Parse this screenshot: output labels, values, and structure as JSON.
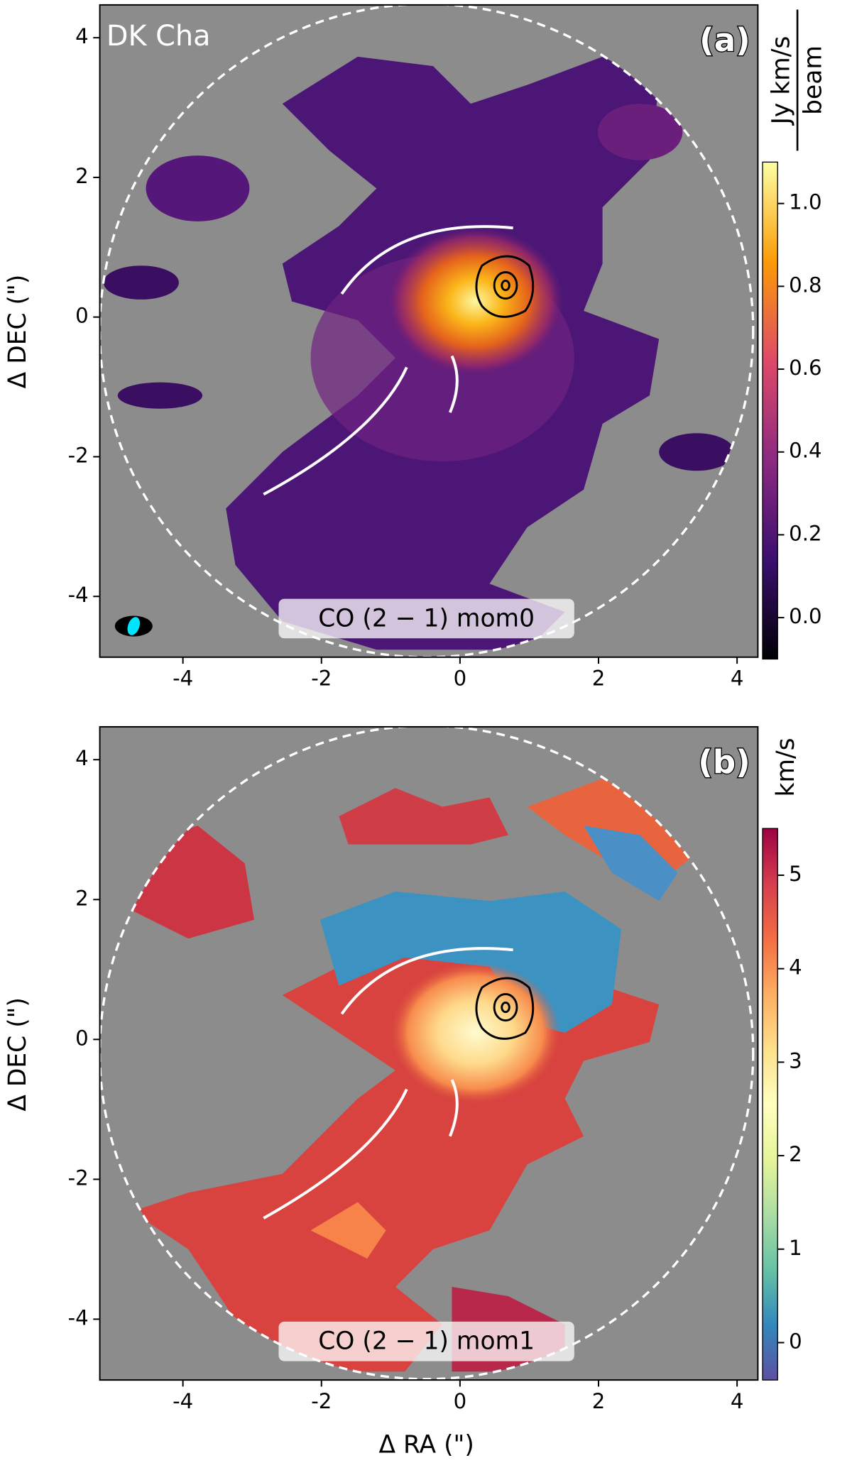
{
  "chart_data": [
    {
      "type": "map",
      "annotation": "DK Cha",
      "panel_label": "(a)",
      "map_label": "CO (2 − 1) mom0",
      "ylabel": "Δ DEC (\")",
      "xlim": [
        -5.2,
        4.3
      ],
      "ylim": [
        -4.87,
        4.47
      ],
      "xticks": [
        -4,
        -2,
        0,
        2,
        4
      ],
      "yticks": [
        -4,
        -2,
        0,
        2,
        4
      ],
      "colorbar": {
        "label": "Jy km/s",
        "label_denominator": "beam",
        "clim": [
          -0.1,
          1.1
        ],
        "ticks": [
          {
            "value": 0,
            "label": "0.0"
          },
          0.2,
          0.4,
          0.6,
          0.8,
          {
            "value": 1,
            "label": "1.0"
          }
        ]
      }
    },
    {
      "type": "map",
      "panel_label": "(b)",
      "map_label": "CO (2 − 1) mom1",
      "ylabel": "Δ DEC (\")",
      "xlabel": "Δ RA (\")",
      "xlim": [
        -5.2,
        4.3
      ],
      "ylim": [
        -4.87,
        4.47
      ],
      "xticks": [
        -4,
        -2,
        0,
        2,
        4
      ],
      "yticks": [
        -4,
        -2,
        0,
        2,
        4
      ],
      "colorbar": {
        "label": "km/s",
        "clim": [
          -0.4,
          5.5
        ],
        "ticks": [
          0,
          1,
          2,
          3,
          4,
          5
        ]
      }
    }
  ]
}
